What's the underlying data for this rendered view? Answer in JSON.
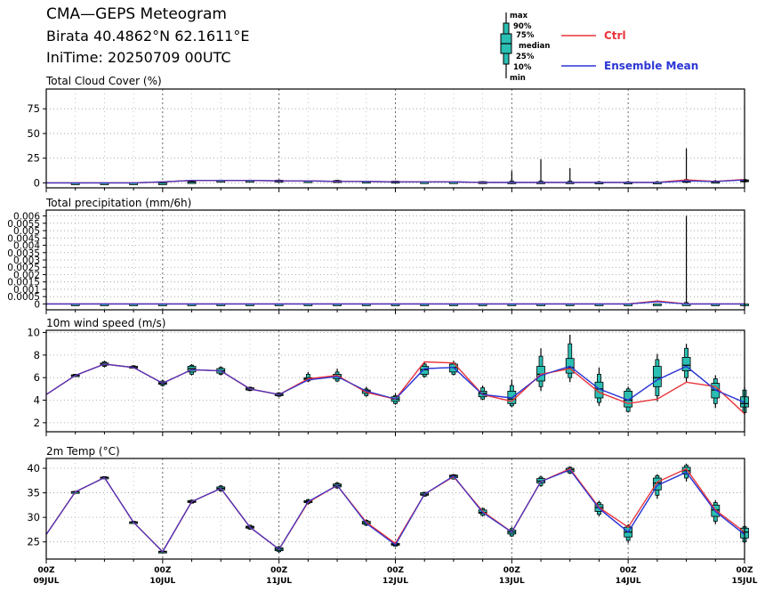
{
  "header": {
    "title": "CMA—GEPS Meteogram",
    "location": "Birata 40.4862°N 62.1611°E",
    "init_time": "IniTime: 20250709 00UTC"
  },
  "legend": {
    "box_labels": [
      "max",
      "90%",
      "75%",
      "median",
      "25%",
      "10%",
      "min"
    ],
    "ctrl_label": "Ctrl",
    "mean_label": "Ensemble Mean",
    "ctrl_color": "#e8343a",
    "mean_color": "#2b35d6",
    "box_color": "#2bbfb3"
  },
  "x_axis": {
    "tick_labels": [
      {
        "top": "00Z",
        "bottom": "09JUL"
      },
      {
        "top": "00Z",
        "bottom": "10JUL"
      },
      {
        "top": "00Z",
        "bottom": "11JUL"
      },
      {
        "top": "00Z",
        "bottom": "12JUL"
      },
      {
        "top": "00Z",
        "bottom": "13JUL"
      },
      {
        "top": "00Z",
        "bottom": "14JUL"
      },
      {
        "top": "00Z",
        "bottom": "15JUL"
      }
    ]
  },
  "chart_data": [
    {
      "type": "box",
      "title": "Total Cloud Cover (%)",
      "x_unit": "hours since 2025-07-09 00UTC",
      "x_range": [
        0,
        144
      ],
      "ylim": [
        -5,
        95
      ],
      "yticks": [
        0,
        25,
        50,
        75
      ],
      "ytick_labels": [
        "0",
        "25",
        "50",
        "75"
      ],
      "x": [
        0,
        6,
        12,
        18,
        24,
        30,
        36,
        42,
        48,
        54,
        60,
        66,
        72,
        78,
        84,
        90,
        96,
        102,
        108,
        114,
        120,
        126,
        132,
        138,
        144
      ],
      "ctrl": [
        0,
        0,
        0,
        0,
        1,
        2.5,
        2.5,
        2.5,
        2,
        2,
        1.5,
        1.5,
        1,
        1,
        1,
        0.5,
        0.5,
        0.5,
        0.5,
        0.5,
        0.5,
        0.5,
        3,
        1.5,
        3.5
      ],
      "mean": [
        0,
        0,
        0,
        0,
        1,
        2.5,
        2.5,
        2.5,
        2,
        2,
        1.5,
        1.5,
        1,
        1,
        1,
        0.5,
        0.5,
        0.5,
        0.5,
        0.5,
        0.5,
        0.5,
        2,
        1.5,
        3
      ],
      "boxes": [
        [
          0,
          0,
          0,
          0,
          0,
          0,
          0
        ],
        [
          0,
          0,
          0,
          0,
          0,
          0,
          0
        ],
        [
          0,
          0,
          0,
          0,
          0,
          0,
          0
        ],
        [
          0,
          0,
          0,
          0,
          0,
          0,
          0
        ],
        [
          0,
          0.5,
          0.8,
          1,
          1.2,
          1.5,
          2
        ],
        [
          2,
          2.2,
          2.4,
          2.5,
          2.6,
          2.8,
          3
        ],
        [
          2,
          2.2,
          2.4,
          2.5,
          2.6,
          2.8,
          3
        ],
        [
          2,
          2.2,
          2.4,
          2.5,
          2.6,
          2.8,
          3
        ],
        [
          1.5,
          1.7,
          1.9,
          2,
          2.1,
          2.3,
          2.5
        ],
        [
          1,
          1.4,
          1.8,
          2,
          2.2,
          2.6,
          3
        ],
        [
          1,
          1.2,
          1.4,
          1.5,
          1.6,
          1.8,
          2
        ],
        [
          1,
          1.2,
          1.4,
          1.5,
          1.6,
          1.8,
          2
        ],
        [
          0.5,
          0.7,
          0.9,
          1,
          1.1,
          1.3,
          1.5
        ],
        [
          0.5,
          0.7,
          0.9,
          1,
          1.1,
          1.3,
          1.5
        ],
        [
          0.5,
          0.7,
          0.9,
          1,
          1.1,
          1.3,
          1.5
        ],
        [
          0,
          0.2,
          0.4,
          0.5,
          1,
          2,
          12
        ],
        [
          0,
          0.2,
          0.4,
          0.5,
          1,
          2,
          24
        ],
        [
          0,
          0.2,
          0.4,
          0.5,
          1,
          2,
          15
        ],
        [
          0,
          0.2,
          0.4,
          0.5,
          0.8,
          1.2,
          2
        ],
        [
          0,
          0.2,
          0.4,
          0.5,
          0.8,
          1.2,
          2
        ],
        [
          0,
          0.2,
          0.4,
          0.5,
          0.8,
          1.2,
          2
        ],
        [
          0,
          0.5,
          1,
          1.5,
          2.5,
          3.5,
          35
        ],
        [
          0,
          0.4,
          0.8,
          1,
          1.5,
          2,
          3
        ],
        [
          0.5,
          1,
          1.5,
          2,
          3,
          3.5,
          4
        ]
      ]
    },
    {
      "type": "box",
      "title": "Total precipitation (mm/6h)",
      "x_unit": "hours since 2025-07-09 00UTC",
      "x_range": [
        0,
        144
      ],
      "ylim": [
        -0.0004,
        0.0064
      ],
      "yticks": [
        0,
        0.0005,
        0.001,
        0.0015,
        0.002,
        0.0025,
        0.003,
        0.0035,
        0.004,
        0.0045,
        0.005,
        0.0055,
        0.006
      ],
      "ytick_labels": [
        "0",
        "0.0005",
        "0.001",
        "0.0015",
        "0.002",
        "0.0025",
        "0.003",
        "0.0035",
        "0.004",
        "0.0045",
        "0.005",
        "0.0055",
        "0.006"
      ],
      "x": [
        0,
        6,
        12,
        18,
        24,
        30,
        36,
        42,
        48,
        54,
        60,
        66,
        72,
        78,
        84,
        90,
        96,
        102,
        108,
        114,
        120,
        126,
        132,
        138,
        144
      ],
      "ctrl": [
        0,
        0,
        0,
        0,
        0,
        0,
        0,
        0,
        0,
        0,
        0,
        0,
        0,
        0,
        0,
        0,
        0,
        0,
        0,
        0,
        0,
        0.0002,
        0,
        0,
        0
      ],
      "mean": [
        0,
        0,
        0,
        0,
        0,
        0,
        0,
        0,
        0,
        0,
        0,
        0,
        0,
        0,
        0,
        0,
        0,
        0,
        0,
        0,
        0,
        0.00015,
        0,
        0,
        0
      ],
      "boxes": [
        [
          0,
          0,
          0,
          0,
          0,
          0,
          0
        ],
        [
          0,
          0,
          0,
          0,
          0,
          0,
          0
        ],
        [
          0,
          0,
          0,
          0,
          0,
          0,
          0
        ],
        [
          0,
          0,
          0,
          0,
          0,
          0,
          0
        ],
        [
          0,
          0,
          0,
          0,
          0,
          0,
          0
        ],
        [
          0,
          0,
          0,
          0,
          0,
          0,
          0
        ],
        [
          0,
          0,
          0,
          0,
          0,
          0,
          0
        ],
        [
          0,
          0,
          0,
          0,
          0,
          0,
          0
        ],
        [
          0,
          0,
          0,
          0,
          0,
          0,
          0
        ],
        [
          0,
          0,
          0,
          0,
          0,
          0,
          0
        ],
        [
          0,
          0,
          0,
          0,
          0,
          0,
          0
        ],
        [
          0,
          0,
          0,
          0,
          0,
          0,
          0
        ],
        [
          0,
          0,
          0,
          0,
          0,
          0,
          0
        ],
        [
          0,
          0,
          0,
          0,
          0,
          0,
          0
        ],
        [
          0,
          0,
          0,
          0,
          0,
          0,
          0
        ],
        [
          0,
          0,
          0,
          0,
          0,
          0,
          0
        ],
        [
          0,
          0,
          0,
          0,
          0,
          0,
          0
        ],
        [
          0,
          0,
          0,
          0,
          0,
          0,
          0
        ],
        [
          0,
          0,
          0,
          0,
          0,
          0,
          0
        ],
        [
          0,
          0,
          0,
          0,
          0,
          0,
          0
        ],
        [
          0,
          0,
          0,
          0,
          0,
          0,
          0
        ],
        [
          0,
          0,
          0,
          0,
          0,
          0.0001,
          0.006
        ],
        [
          0,
          0,
          0,
          0,
          0,
          0,
          0
        ],
        [
          0,
          0,
          0,
          0,
          0,
          0,
          0
        ]
      ]
    },
    {
      "type": "box",
      "title": "10m wind speed (m/s)",
      "x_unit": "hours since 2025-07-09 00UTC",
      "x_range": [
        0,
        144
      ],
      "ylim": [
        1.2,
        10.2
      ],
      "yticks": [
        2,
        4,
        6,
        8,
        10
      ],
      "ytick_labels": [
        "2",
        "4",
        "6",
        "8",
        "10"
      ],
      "x": [
        0,
        6,
        12,
        18,
        24,
        30,
        36,
        42,
        48,
        54,
        60,
        66,
        72,
        78,
        84,
        90,
        96,
        102,
        108,
        114,
        120,
        126,
        132,
        138,
        144
      ],
      "ctrl": [
        4.5,
        6.2,
        7.2,
        6.9,
        5.5,
        6.7,
        6.6,
        5,
        4.5,
        5.9,
        6.2,
        4.7,
        4.1,
        7.4,
        7.3,
        4.5,
        3.9,
        6.3,
        6.8,
        4.7,
        3.7,
        4.1,
        5.6,
        5.2,
        2.8
      ],
      "mean": [
        4.5,
        6.2,
        7.2,
        6.9,
        5.5,
        6.7,
        6.6,
        5,
        4.5,
        5.8,
        6.1,
        4.8,
        4.1,
        6.8,
        6.9,
        4.5,
        4.2,
        6.2,
        7,
        5,
        4,
        5.8,
        7,
        4.9,
        3.8
      ],
      "boxes": [
        [
          6.1,
          6.15,
          6.2,
          6.2,
          6.25,
          6.3,
          6.3
        ],
        [
          6.9,
          7,
          7.1,
          7.2,
          7.3,
          7.4,
          7.5
        ],
        [
          6.8,
          6.85,
          6.9,
          6.95,
          7,
          7.05,
          7.1
        ],
        [
          5.2,
          5.3,
          5.4,
          5.5,
          5.6,
          5.7,
          5.8
        ],
        [
          6.2,
          6.3,
          6.5,
          6.8,
          7,
          7.1,
          7.2
        ],
        [
          6.2,
          6.3,
          6.4,
          6.6,
          6.8,
          6.9,
          7
        ],
        [
          4.8,
          4.85,
          4.9,
          5,
          5.1,
          5.15,
          5.2
        ],
        [
          4.3,
          4.35,
          4.4,
          4.5,
          4.6,
          4.65,
          4.7
        ],
        [
          5.6,
          5.7,
          5.8,
          5.9,
          6,
          6.3,
          6.5
        ],
        [
          5.6,
          5.7,
          5.9,
          6.1,
          6.3,
          6.5,
          6.8
        ],
        [
          4.3,
          4.4,
          4.6,
          4.8,
          4.9,
          5,
          5.2
        ],
        [
          3.6,
          3.7,
          3.9,
          4.1,
          4.3,
          4.4,
          4.6
        ],
        [
          6,
          6.1,
          6.3,
          6.7,
          7,
          7.2,
          7.4
        ],
        [
          6.2,
          6.3,
          6.5,
          6.9,
          7.2,
          7.3,
          7.5
        ],
        [
          4,
          4.1,
          4.3,
          4.6,
          4.8,
          5.1,
          5.3
        ],
        [
          3.4,
          3.5,
          3.7,
          4.1,
          4.8,
          5.3,
          5.8
        ],
        [
          4.8,
          5.2,
          5.7,
          6.3,
          7,
          7.9,
          8.6
        ],
        [
          5.6,
          6,
          6.4,
          6.9,
          7.7,
          9,
          9.8
        ],
        [
          3.5,
          3.8,
          4.2,
          5,
          5.6,
          6.3,
          6.9
        ],
        [
          2.9,
          3,
          3.4,
          4,
          4.8,
          5,
          5.2
        ],
        [
          3.9,
          4.4,
          5.2,
          6,
          7,
          7.6,
          8.1
        ],
        [
          5.6,
          6,
          6.6,
          7.1,
          7.8,
          8.6,
          9
        ],
        [
          3.3,
          3.7,
          4.2,
          4.9,
          5.5,
          5.9,
          6.2
        ],
        [
          2.7,
          2.9,
          3.4,
          3.7,
          4.3,
          4.9,
          5.2
        ]
      ]
    },
    {
      "type": "box",
      "title": "2m Temp (°C)",
      "x_unit": "hours since 2025-07-09 00UTC",
      "x_range": [
        0,
        144
      ],
      "ylim": [
        21.5,
        42
      ],
      "yticks": [
        25,
        30,
        35,
        40
      ],
      "ytick_labels": [
        "25",
        "30",
        "35",
        "40"
      ],
      "x": [
        0,
        6,
        12,
        18,
        24,
        30,
        36,
        42,
        48,
        54,
        60,
        66,
        72,
        78,
        84,
        90,
        96,
        102,
        108,
        114,
        120,
        126,
        132,
        138,
        144
      ],
      "ctrl": [
        26.5,
        35.2,
        38.1,
        29,
        23,
        33.2,
        35.9,
        28,
        23.5,
        33.1,
        36.5,
        29,
        24.7,
        34.7,
        38.3,
        31.2,
        27,
        37.3,
        39.9,
        32,
        28,
        37.2,
        39.9,
        31.5,
        27
      ],
      "mean": [
        26.5,
        35.2,
        38.1,
        29,
        23,
        33.2,
        35.9,
        28,
        23.5,
        33.2,
        36.5,
        28.8,
        24.4,
        34.7,
        38.4,
        31,
        27,
        37.3,
        39.7,
        31.8,
        27,
        36.5,
        39.2,
        31.2,
        26.5
      ],
      "boxes": [
        [
          35,
          35.1,
          35.15,
          35.2,
          35.25,
          35.3,
          35.4
        ],
        [
          37.8,
          37.9,
          38,
          38.1,
          38.2,
          38.3,
          38.4
        ],
        [
          28.7,
          28.8,
          28.9,
          29,
          29.1,
          29.2,
          29.3
        ],
        [
          22.8,
          22.85,
          22.9,
          23,
          23.1,
          23.15,
          23.2
        ],
        [
          32.8,
          32.9,
          33.1,
          33.2,
          33.4,
          33.5,
          33.6
        ],
        [
          35.2,
          35.4,
          35.6,
          35.9,
          36.2,
          36.4,
          36.6
        ],
        [
          27.5,
          27.6,
          27.8,
          28,
          28.2,
          28.4,
          28.5
        ],
        [
          22.8,
          23,
          23.2,
          23.5,
          23.8,
          24,
          24.2
        ],
        [
          32.6,
          32.8,
          33,
          33.2,
          33.4,
          33.6,
          33.8
        ],
        [
          35.8,
          36,
          36.2,
          36.5,
          36.8,
          37,
          37.2
        ],
        [
          28.2,
          28.4,
          28.6,
          28.9,
          29.2,
          29.4,
          29.6
        ],
        [
          24,
          24.1,
          24.3,
          24.5,
          24.7,
          24.9,
          25
        ],
        [
          34.2,
          34.3,
          34.5,
          34.7,
          35,
          35.1,
          35.2
        ],
        [
          37.7,
          37.8,
          38.1,
          38.4,
          38.6,
          38.7,
          38.8
        ],
        [
          30.2,
          30.4,
          30.8,
          31,
          31.5,
          31.8,
          32
        ],
        [
          26,
          26.2,
          26.6,
          27,
          27.4,
          27.7,
          28
        ],
        [
          36.2,
          36.5,
          37,
          37.4,
          37.9,
          38.2,
          38.5
        ],
        [
          38.8,
          39,
          39.3,
          39.7,
          40,
          40.2,
          40.4
        ],
        [
          30.2,
          30.6,
          31.2,
          32,
          32.6,
          33,
          33.4
        ],
        [
          24.8,
          25.3,
          26,
          27,
          28,
          28.3,
          28.6
        ],
        [
          33.8,
          34.5,
          35.6,
          37,
          38,
          38.5,
          38.8
        ],
        [
          37.3,
          38,
          38.8,
          39.5,
          40.2,
          40.6,
          40.9
        ],
        [
          28.6,
          29.2,
          30.2,
          31.5,
          32.5,
          33,
          33.5
        ],
        [
          24.6,
          25,
          25.8,
          27,
          27.8,
          28.1,
          28.4
        ]
      ]
    }
  ]
}
